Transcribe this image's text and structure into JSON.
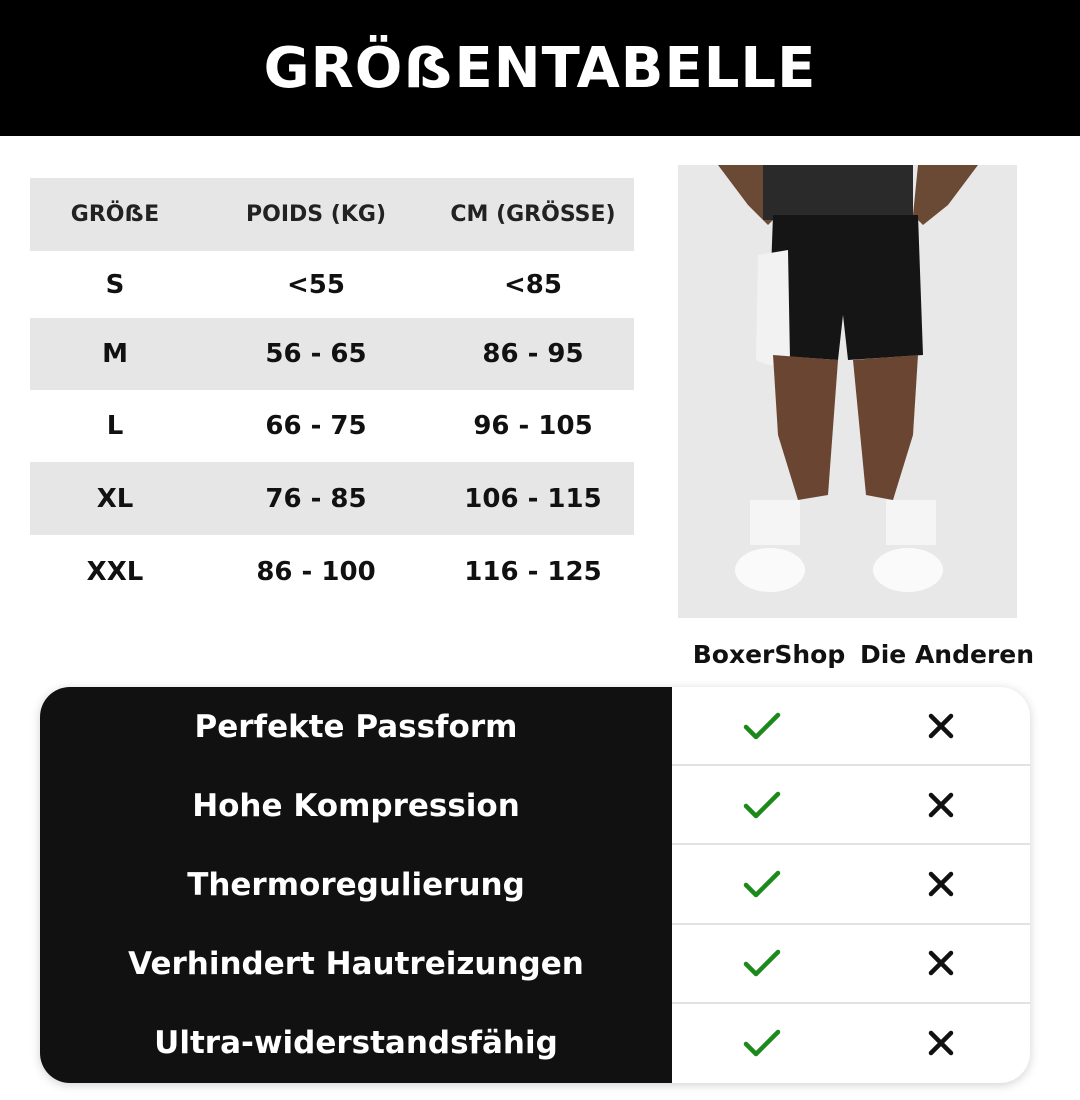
{
  "title": "GRÖẞENTABELLE",
  "size_table": {
    "headers": [
      "GRÖẞE",
      "POIDS (KG)",
      "CM (GRÖSSE)"
    ],
    "rows": [
      [
        "S",
        "<55",
        "<85"
      ],
      [
        "M",
        "56 - 65",
        "86 - 95"
      ],
      [
        "L",
        "66 - 75",
        "96 - 105"
      ],
      [
        "XL",
        "76 - 85",
        "106 - 115"
      ],
      [
        "XXL",
        "86 - 100",
        "116 - 125"
      ]
    ]
  },
  "comparison": {
    "columns": [
      "BoxerShop",
      "Die Anderen"
    ],
    "features": [
      "Perfekte Passform",
      "Hohe Kompression",
      "Thermoregulierung",
      "Verhindert Hautreizungen",
      "Ultra-widerstandsfähig"
    ],
    "check_icon": "check-icon",
    "cross_icon": "x-icon",
    "check_color": "#1a8a1a",
    "cross_color": "#111111"
  }
}
